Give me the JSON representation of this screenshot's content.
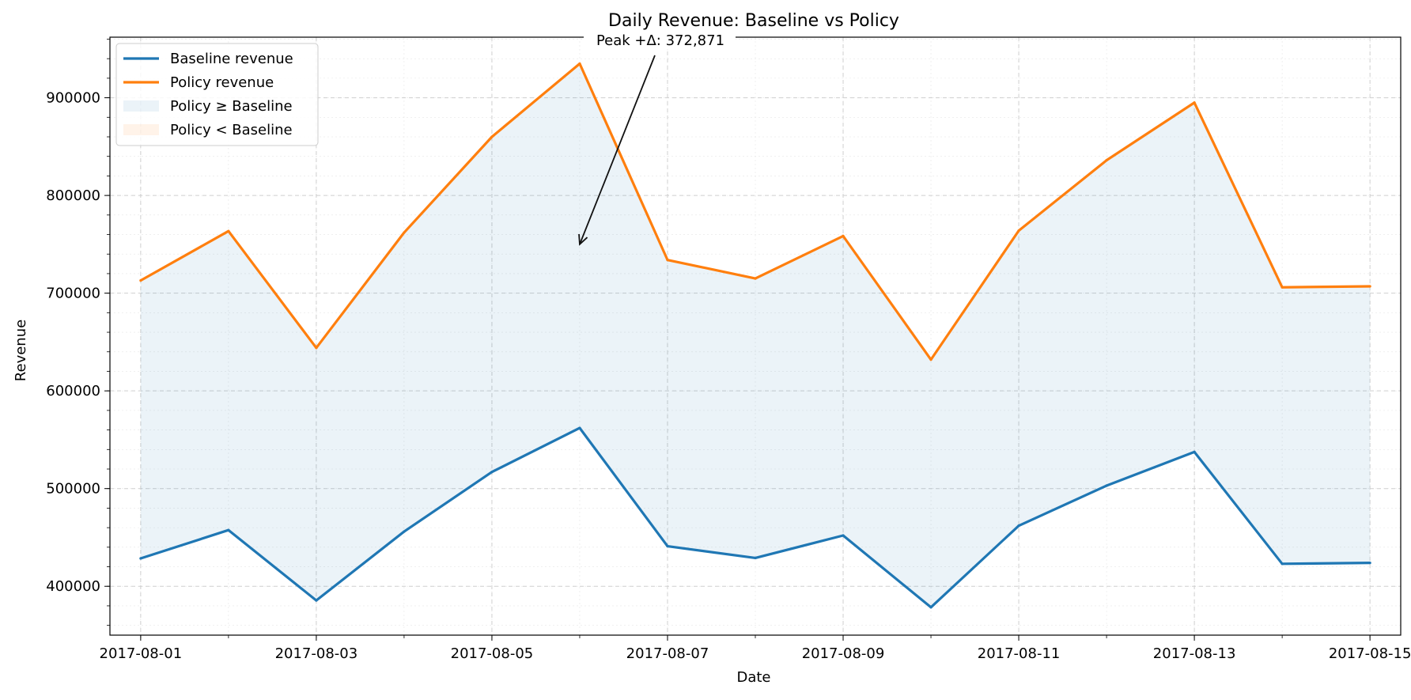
{
  "chart_data": {
    "type": "line",
    "title": "Daily Revenue: Baseline vs Policy",
    "xlabel": "Date",
    "ylabel": "Revenue",
    "x": [
      "2017-08-01",
      "2017-08-02",
      "2017-08-03",
      "2017-08-04",
      "2017-08-05",
      "2017-08-06",
      "2017-08-07",
      "2017-08-08",
      "2017-08-09",
      "2017-08-10",
      "2017-08-11",
      "2017-08-12",
      "2017-08-13",
      "2017-08-14",
      "2017-08-15"
    ],
    "xticks": [
      "2017-08-01",
      "2017-08-03",
      "2017-08-05",
      "2017-08-07",
      "2017-08-09",
      "2017-08-11",
      "2017-08-13",
      "2017-08-15"
    ],
    "xlim": [
      "2017-07-31",
      "2017-08-15"
    ],
    "ylim": [
      350000,
      962000
    ],
    "yticks": [
      400000,
      500000,
      600000,
      700000,
      800000,
      900000
    ],
    "ytick_labels": [
      "400000",
      "500000",
      "600000",
      "700000",
      "800000",
      "900000"
    ],
    "grid": true,
    "legend_position": "top-left",
    "series": [
      {
        "name": "Baseline revenue",
        "color": "#1f77b4",
        "values": [
          428500,
          457500,
          385500,
          456000,
          517000,
          562000,
          441000,
          429000,
          452000,
          378500,
          462000,
          503000,
          537500,
          423000,
          424000
        ]
      },
      {
        "name": "Policy revenue",
        "color": "#ff7f0e",
        "values": [
          713000,
          763500,
          644000,
          762000,
          860000,
          934871,
          734000,
          715000,
          758500,
          632000,
          764000,
          836000,
          895000,
          706000,
          707000
        ]
      }
    ],
    "fills": [
      {
        "name": "Policy ≥ Baseline",
        "color": "#1f77b4"
      },
      {
        "name": "Policy < Baseline",
        "color": "#ff7f0e"
      }
    ],
    "annotation": {
      "text": "Peak +Δ: 372,871",
      "target_x": "2017-08-06",
      "target_y": 750000
    }
  }
}
